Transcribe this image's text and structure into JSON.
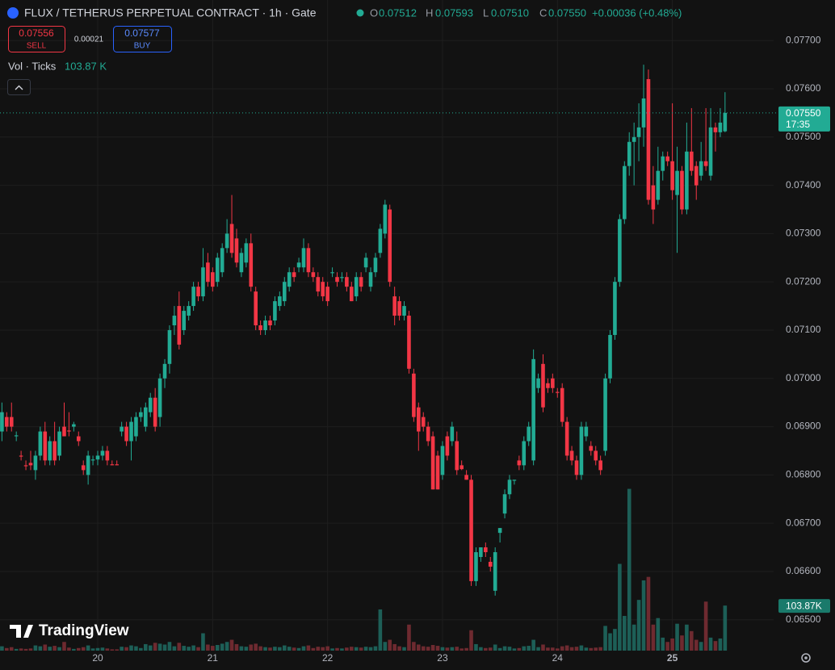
{
  "header": {
    "title": "FLUX / TETHERUS PERPETUAL CONTRACT · 1h · Gate",
    "ohlc": [
      {
        "label": "O",
        "value": "0.07512"
      },
      {
        "label": "H",
        "value": "0.07593"
      },
      {
        "label": "L",
        "value": "0.07510"
      },
      {
        "label": "C",
        "value": "0.07550"
      }
    ],
    "change": "+0.00036 (+0.48%)"
  },
  "trade": {
    "sell_price": "0.07556",
    "sell": "SELL",
    "spread": "0.00021",
    "buy_price": "0.07577",
    "buy": "BUY"
  },
  "volume_legend": {
    "label": "Vol · Ticks",
    "value": "103.87 K"
  },
  "brand": "TradingView",
  "chart_data": {
    "type": "candlestick",
    "up_color": "#22ab94",
    "down_color": "#f23645",
    "up_volume_color": "#1d5f57",
    "down_volume_color": "#6e2a30",
    "ylim": [
      0.06436,
      0.07784
    ],
    "yticks": [
      {
        "value": 0.065,
        "label": "0.06500"
      },
      {
        "value": 0.066,
        "label": "0.06600"
      },
      {
        "value": 0.067,
        "label": "0.06700"
      },
      {
        "value": 0.068,
        "label": "0.06800"
      },
      {
        "value": 0.069,
        "label": "0.06900"
      },
      {
        "value": 0.07,
        "label": "0.07000"
      },
      {
        "value": 0.071,
        "label": "0.07100"
      },
      {
        "value": 0.072,
        "label": "0.07200"
      },
      {
        "value": 0.073,
        "label": "0.07300"
      },
      {
        "value": 0.074,
        "label": "0.07400"
      },
      {
        "value": 0.075,
        "label": "0.07500"
      },
      {
        "value": 0.076,
        "label": "0.07600"
      },
      {
        "value": 0.077,
        "label": "0.07700"
      }
    ],
    "y2lim": [
      0,
      1500
    ],
    "grid": true,
    "last_price_label": "0.07550",
    "countdown": "17:35",
    "last_volume_label": "103.87K",
    "categories": [
      null,
      null,
      null,
      null,
      null,
      null,
      null,
      null,
      null,
      null,
      null,
      null,
      null,
      null,
      null,
      null,
      null,
      null,
      null,
      null,
      "20",
      null,
      null,
      null,
      null,
      null,
      null,
      null,
      null,
      null,
      null,
      null,
      null,
      null,
      null,
      null,
      null,
      null,
      null,
      null,
      null,
      null,
      null,
      null,
      "21",
      null,
      null,
      null,
      null,
      null,
      null,
      null,
      null,
      null,
      null,
      null,
      null,
      null,
      null,
      null,
      null,
      null,
      null,
      null,
      null,
      null,
      null,
      null,
      "22",
      null,
      null,
      null,
      null,
      null,
      null,
      null,
      null,
      null,
      null,
      null,
      null,
      null,
      null,
      null,
      null,
      null,
      null,
      null,
      null,
      null,
      null,
      null,
      "23",
      null,
      null,
      null,
      null,
      null,
      null,
      null,
      null,
      null,
      null,
      null,
      null,
      null,
      null,
      null,
      null,
      null,
      null,
      null,
      null,
      null,
      null,
      null,
      "24",
      null,
      null,
      null,
      null,
      null,
      null,
      null,
      null,
      null,
      null,
      null,
      null,
      null,
      null,
      null,
      null,
      null,
      null,
      null,
      null,
      null,
      null,
      null,
      "25",
      null,
      null,
      null,
      null,
      null,
      null,
      null,
      null,
      null,
      null,
      null
    ],
    "candles": [
      [
        0.0689,
        0.0695,
        0.0687,
        0.0693,
        10
      ],
      [
        0.0692,
        0.0693,
        0.0689,
        0.069,
        6
      ],
      [
        0.0692,
        0.0695,
        0.0689,
        0.069,
        8
      ],
      [
        0.0688,
        0.0689,
        0.0687,
        0.06882,
        4
      ],
      [
        0.0684,
        0.0685,
        0.0683,
        0.06838,
        5
      ],
      [
        0.0682,
        0.0683,
        0.0681,
        0.06818,
        4
      ],
      [
        0.06825,
        0.0685,
        0.0681,
        0.0682,
        5
      ],
      [
        0.0681,
        0.0685,
        0.0679,
        0.0684,
        12
      ],
      [
        0.0684,
        0.069,
        0.0683,
        0.0689,
        10
      ],
      [
        0.0689,
        0.0691,
        0.0682,
        0.0683,
        14
      ],
      [
        0.0683,
        0.0688,
        0.0682,
        0.0687,
        9
      ],
      [
        0.0687,
        0.0691,
        0.0682,
        0.0683,
        11
      ],
      [
        0.0684,
        0.069,
        0.0683,
        0.0689,
        8
      ],
      [
        0.069,
        0.0695,
        0.0688,
        0.0688,
        20
      ],
      [
        0.06892,
        0.0693,
        0.0688,
        0.0689,
        7
      ],
      [
        0.069,
        0.0691,
        0.0689,
        0.06905,
        4
      ],
      [
        0.0688,
        0.0689,
        0.0686,
        0.0687,
        6
      ],
      [
        0.0682,
        0.0683,
        0.068,
        0.0681,
        8
      ],
      [
        0.068,
        0.0685,
        0.0678,
        0.0684,
        12
      ],
      [
        0.0683,
        0.0684,
        0.0682,
        0.06832,
        5
      ],
      [
        0.06832,
        0.0685,
        0.0682,
        0.0684,
        6
      ],
      [
        0.0684,
        0.0686,
        0.0683,
        0.0685,
        7
      ],
      [
        0.0685,
        0.0686,
        0.0682,
        0.0683,
        5
      ],
      [
        0.06822,
        0.0683,
        0.0682,
        0.0682,
        3
      ],
      [
        0.06822,
        0.0683,
        0.0682,
        0.0682,
        3
      ],
      [
        0.0689,
        0.0691,
        0.0688,
        0.069,
        9
      ],
      [
        0.069,
        0.0691,
        0.0686,
        0.0687,
        8
      ],
      [
        0.0687,
        0.0692,
        0.0683,
        0.0691,
        12
      ],
      [
        0.0688,
        0.0693,
        0.0687,
        0.0692,
        10
      ],
      [
        0.0692,
        0.0694,
        0.0691,
        0.0693,
        6
      ],
      [
        0.069,
        0.0695,
        0.0689,
        0.0694,
        15
      ],
      [
        0.0693,
        0.0697,
        0.0692,
        0.0696,
        12
      ],
      [
        0.0696,
        0.0698,
        0.0689,
        0.069,
        18
      ],
      [
        0.0692,
        0.0701,
        0.069,
        0.07,
        16
      ],
      [
        0.07,
        0.0704,
        0.0698,
        0.0703,
        14
      ],
      [
        0.0703,
        0.0711,
        0.0701,
        0.071,
        20
      ],
      [
        0.0711,
        0.0715,
        0.0709,
        0.0713,
        10
      ],
      [
        0.0715,
        0.0718,
        0.0706,
        0.0707,
        18
      ],
      [
        0.071,
        0.0715,
        0.0709,
        0.0714,
        11
      ],
      [
        0.0713,
        0.0716,
        0.0712,
        0.0715,
        9
      ],
      [
        0.0715,
        0.072,
        0.0714,
        0.0719,
        12
      ],
      [
        0.0719,
        0.072,
        0.0716,
        0.0717,
        8
      ],
      [
        0.0717,
        0.0727,
        0.0716,
        0.0723,
        40
      ],
      [
        0.0724,
        0.0726,
        0.0719,
        0.072,
        14
      ],
      [
        0.0722,
        0.0723,
        0.0718,
        0.0719,
        11
      ],
      [
        0.072,
        0.0726,
        0.0719,
        0.0725,
        13
      ],
      [
        0.0722,
        0.0728,
        0.0721,
        0.0727,
        16
      ],
      [
        0.0727,
        0.0733,
        0.0726,
        0.073,
        20
      ],
      [
        0.0732,
        0.0738,
        0.0725,
        0.0726,
        25
      ],
      [
        0.0729,
        0.0731,
        0.0723,
        0.0724,
        15
      ],
      [
        0.0722,
        0.0727,
        0.0721,
        0.0726,
        10
      ],
      [
        0.0724,
        0.0729,
        0.0723,
        0.0728,
        9
      ],
      [
        0.0728,
        0.073,
        0.0718,
        0.0719,
        14
      ],
      [
        0.0718,
        0.0719,
        0.071,
        0.0711,
        16
      ],
      [
        0.0711,
        0.0712,
        0.0709,
        0.071,
        10
      ],
      [
        0.071,
        0.0713,
        0.0709,
        0.0712,
        8
      ],
      [
        0.0712,
        0.0713,
        0.071,
        0.0711,
        7
      ],
      [
        0.0712,
        0.0717,
        0.0711,
        0.0716,
        9
      ],
      [
        0.0715,
        0.0718,
        0.0714,
        0.0717,
        8
      ],
      [
        0.0716,
        0.0721,
        0.0715,
        0.072,
        12
      ],
      [
        0.0719,
        0.0723,
        0.0718,
        0.0722,
        9
      ],
      [
        0.0722,
        0.0723,
        0.072,
        0.0721,
        7
      ],
      [
        0.0723,
        0.0725,
        0.0722,
        0.0724,
        6
      ],
      [
        0.0723,
        0.0729,
        0.0722,
        0.0727,
        10
      ],
      [
        0.0727,
        0.0728,
        0.0721,
        0.0722,
        12
      ],
      [
        0.0722,
        0.0723,
        0.072,
        0.0721,
        6
      ],
      [
        0.0721,
        0.0722,
        0.0717,
        0.0718,
        9
      ],
      [
        0.072,
        0.0721,
        0.0716,
        0.0717,
        8
      ],
      [
        0.0719,
        0.072,
        0.0715,
        0.0716,
        10
      ],
      [
        0.07218,
        0.0723,
        0.0721,
        0.0722,
        5
      ],
      [
        0.0721,
        0.0722,
        0.0719,
        0.072,
        6
      ],
      [
        0.07208,
        0.0722,
        0.072,
        0.0721,
        5
      ],
      [
        0.0721,
        0.0722,
        0.0718,
        0.0719,
        7
      ],
      [
        0.0719,
        0.072,
        0.0716,
        0.0716,
        9
      ],
      [
        0.0717,
        0.0722,
        0.0716,
        0.0721,
        8
      ],
      [
        0.0721,
        0.0722,
        0.0718,
        0.0719,
        7
      ],
      [
        0.0723,
        0.0726,
        0.0722,
        0.0725,
        9
      ],
      [
        0.0719,
        0.0723,
        0.0718,
        0.0722,
        8
      ],
      [
        0.0722,
        0.0726,
        0.0721,
        0.0725,
        10
      ],
      [
        0.0726,
        0.0732,
        0.0725,
        0.0731,
        95
      ],
      [
        0.073,
        0.0737,
        0.0729,
        0.0736,
        20
      ],
      [
        0.0735,
        0.0736,
        0.0719,
        0.072,
        25
      ],
      [
        0.0717,
        0.0719,
        0.0711,
        0.0713,
        15
      ],
      [
        0.0716,
        0.0717,
        0.0712,
        0.0713,
        10
      ],
      [
        0.0713,
        0.0716,
        0.0712,
        0.0715,
        8
      ],
      [
        0.0713,
        0.0714,
        0.0701,
        0.0702,
        60
      ],
      [
        0.0701,
        0.0702,
        0.0691,
        0.0692,
        20
      ],
      [
        0.0694,
        0.0695,
        0.0685,
        0.0689,
        14
      ],
      [
        0.0692,
        0.0693,
        0.0689,
        0.069,
        10
      ],
      [
        0.069,
        0.0691,
        0.0686,
        0.0687,
        9
      ],
      [
        0.0688,
        0.0689,
        0.0677,
        0.0677,
        13
      ],
      [
        0.0684,
        0.0685,
        0.0677,
        0.0677,
        11
      ],
      [
        0.068,
        0.0687,
        0.0679,
        0.0686,
        8
      ],
      [
        0.0688,
        0.0689,
        0.0683,
        0.0684,
        7
      ],
      [
        0.0687,
        0.0691,
        0.0686,
        0.069,
        8
      ],
      [
        0.0687,
        0.0689,
        0.068,
        0.0681,
        9
      ],
      [
        0.0682,
        0.0683,
        0.0681,
        0.06812,
        5
      ],
      [
        0.068,
        0.0681,
        0.0679,
        0.0679,
        6
      ],
      [
        0.0679,
        0.068,
        0.0657,
        0.0658,
        47
      ],
      [
        0.0658,
        0.0665,
        0.0657,
        0.0664,
        15
      ],
      [
        0.0663,
        0.0665,
        0.0662,
        0.0665,
        8
      ],
      [
        0.0665,
        0.0666,
        0.0663,
        0.0664,
        6
      ],
      [
        0.0662,
        0.0663,
        0.066,
        0.0661,
        7
      ],
      [
        0.0656,
        0.0665,
        0.0655,
        0.0664,
        14
      ],
      [
        0.0668,
        0.0669,
        0.0666,
        0.0669,
        6
      ],
      [
        0.0672,
        0.0677,
        0.0671,
        0.0676,
        10
      ],
      [
        0.0676,
        0.068,
        0.0675,
        0.0679,
        9
      ],
      [
        0.06788,
        0.0679,
        0.0678,
        0.0679,
        5
      ],
      [
        0.0683,
        0.0684,
        0.0681,
        0.0682,
        6
      ],
      [
        0.0682,
        0.0688,
        0.0681,
        0.0687,
        10
      ],
      [
        0.0687,
        0.0691,
        0.0686,
        0.069,
        11
      ],
      [
        0.0683,
        0.0706,
        0.0682,
        0.0704,
        25
      ],
      [
        0.0698,
        0.0701,
        0.0697,
        0.07,
        8
      ],
      [
        0.0703,
        0.0705,
        0.0693,
        0.0694,
        14
      ],
      [
        0.0699,
        0.07,
        0.0697,
        0.0698,
        7
      ],
      [
        0.07,
        0.0701,
        0.0697,
        0.0698,
        7
      ],
      [
        0.06972,
        0.0698,
        0.0696,
        0.0697,
        5
      ],
      [
        0.0698,
        0.0699,
        0.069,
        0.0691,
        10
      ],
      [
        0.0691,
        0.0692,
        0.0683,
        0.0684,
        12
      ],
      [
        0.0685,
        0.0686,
        0.0682,
        0.0683,
        8
      ],
      [
        0.0683,
        0.0684,
        0.0679,
        0.068,
        9
      ],
      [
        0.068,
        0.0691,
        0.0679,
        0.069,
        12
      ],
      [
        0.0688,
        0.0691,
        0.0687,
        0.069,
        7
      ],
      [
        0.0686,
        0.0687,
        0.0684,
        0.0685,
        6
      ],
      [
        0.0685,
        0.0686,
        0.0682,
        0.0683,
        7
      ],
      [
        0.0683,
        0.0684,
        0.068,
        0.0681,
        8
      ],
      [
        0.0685,
        0.0701,
        0.0684,
        0.07,
        57
      ],
      [
        0.07,
        0.071,
        0.0699,
        0.0709,
        40
      ],
      [
        0.0709,
        0.0721,
        0.0708,
        0.072,
        50
      ],
      [
        0.072,
        0.0734,
        0.0719,
        0.0733,
        200
      ],
      [
        0.0733,
        0.0745,
        0.0732,
        0.0744,
        80
      ],
      [
        0.0744,
        0.0751,
        0.0742,
        0.0749,
        373
      ],
      [
        0.0749,
        0.0753,
        0.074,
        0.075,
        60
      ],
      [
        0.075,
        0.0757,
        0.0745,
        0.0752,
        117
      ],
      [
        0.0752,
        0.0765,
        0.0748,
        0.0758,
        162
      ],
      [
        0.0762,
        0.0764,
        0.0736,
        0.0737,
        170
      ],
      [
        0.074,
        0.0744,
        0.0732,
        0.0735,
        60
      ],
      [
        0.0737,
        0.0748,
        0.0736,
        0.0743,
        75
      ],
      [
        0.0743,
        0.0747,
        0.0741,
        0.0746,
        30
      ],
      [
        0.0746,
        0.0747,
        0.0744,
        0.0745,
        20
      ],
      [
        0.0745,
        0.0757,
        0.0737,
        0.0739,
        28
      ],
      [
        0.0738,
        0.0748,
        0.0726,
        0.0743,
        62
      ],
      [
        0.0743,
        0.0744,
        0.0734,
        0.0735,
        35
      ],
      [
        0.0735,
        0.0753,
        0.0734,
        0.0747,
        60
      ],
      [
        0.0747,
        0.0756,
        0.0742,
        0.0743,
        45
      ],
      [
        0.0744,
        0.0745,
        0.0737,
        0.074,
        25
      ],
      [
        0.0742,
        0.0749,
        0.0741,
        0.0745,
        20
      ],
      [
        0.0745,
        0.0756,
        0.0743,
        0.0744,
        113
      ],
      [
        0.0742,
        0.0756,
        0.0741,
        0.0752,
        30
      ],
      [
        0.0752,
        0.0753,
        0.0747,
        0.0751,
        22
      ],
      [
        0.0751,
        0.0756,
        0.075,
        0.0753,
        28
      ],
      [
        0.07512,
        0.07593,
        0.0751,
        0.0755,
        103.87
      ]
    ]
  }
}
